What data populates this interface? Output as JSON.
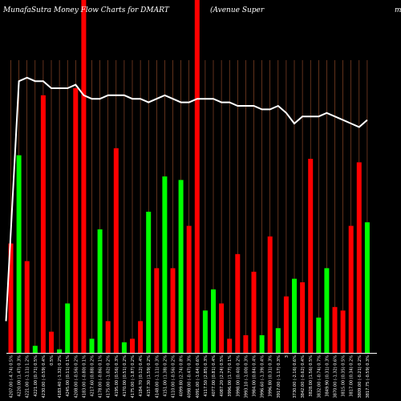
{
  "chart_data": {
    "type": "bar",
    "title": "MunafaSutra  Money Flow  Charts for DMART",
    "subtitle": "(Avenue   Super",
    "title_edge": "m",
    "ylim": [
      0,
      100
    ],
    "grid": "vertical",
    "colors": {
      "up": "#00ff00",
      "down": "#ff0000",
      "grid": "#a0522d",
      "line": "#ffffff",
      "background": "#000000"
    },
    "categories": [
      "4207.00 (-4.74) 0.5%",
      "4220.00 (1.47) 0.3%",
      "4221.00 (-1.11) 1.2%",
      "4221.00 (0.71) 0.5%",
      "4230.00 (-0.59) 0.4%",
      "0.5%",
      "4183.40 (-1.32) 0.2%",
      "4245.00 (0.11) 0.1%",
      "4208.00 (-0.56) 0.2%",
      "4183.00 (-0.80) 0.1%",
      "4217.60 (0.88) 0.2%",
      "4178.00 (-0.86) 0.1%",
      "4175.00 (-1.02) 0.2%",
      "4195.00 (0.56) 0.3%",
      "4170.00 (0.51) 0.2%",
      "4175.00 (-1.87) 0.2%",
      "4184.70 (0.12) 0.4%",
      "4157.30 (1.59) 0.2%",
      "4148.00 (-1.11) 0.3%",
      "4151.00 (1.38) 0.2%",
      "4110.00 (-0.56) 0.2%",
      "4099.80 (2.74) 0.8%",
      "4098.00 (-0.47) 0.3%",
      "4091.00 (-1.64) 0.6%",
      "4117.50 (2.85) 0.3%",
      "4077.00 (0.81) 0.4%",
      "4087.20 (2.24) 0.5%",
      "3996.00 (1.77) 0.1%",
      "3998.00 (0.40) 0.2%",
      "3993.10 (-1.00) 0.3%",
      "3984.00 (0.84) 0.4%",
      "3996.60 (-1.39) 0.4%",
      "3996.80 (0.31) 0.3%",
      "3917.00 (-1.17) 0.3%",
      "3",
      "3730.00 (-2.16) 0.6%",
      "3842.00 (-0.62) 0.4%",
      "3828.00 (1.56) 0.5%",
      "3832.00 (-0.74) 0.7%",
      "3849.90 (0.31) 0.3%",
      "3870.00 (-1.32) 0.6%",
      "3815.00 (0.35) 0.5%",
      "3817.00 (0.34) 0.2%",
      "3809.00 (-0.21) 0.2%",
      "3817.75 (-0.59) 0.3%"
    ],
    "series": [
      {
        "values": [
          31,
          56,
          26,
          2,
          73,
          6,
          1,
          14,
          75,
          100,
          4,
          35,
          9,
          58,
          3,
          4,
          9,
          40,
          24,
          50,
          24,
          49,
          36,
          100,
          12,
          18,
          14,
          4,
          28,
          5,
          23,
          5,
          33,
          7,
          16,
          21,
          20,
          55,
          10,
          24,
          13,
          12,
          36,
          54,
          37
        ],
        "direction": [
          "down",
          "up",
          "down",
          "up",
          "down",
          "down",
          "up",
          "up",
          "down",
          "down",
          "up",
          "up",
          "down",
          "down",
          "up",
          "down",
          "down",
          "up",
          "down",
          "up",
          "down",
          "up",
          "down",
          "down",
          "up",
          "up",
          "down",
          "down",
          "down",
          "down",
          "down",
          "up",
          "down",
          "up",
          "down",
          "up",
          "down",
          "down",
          "up",
          "up",
          "down",
          "down",
          "down",
          "down",
          "up"
        ]
      },
      {
        "type": "line",
        "values": [
          9,
          77,
          78,
          77,
          77,
          75,
          75,
          75,
          76,
          73,
          72,
          72,
          73,
          73,
          73,
          72,
          72,
          71,
          72,
          73,
          72,
          71,
          71,
          72,
          72,
          72,
          71,
          71,
          70,
          70,
          70,
          69,
          69,
          70,
          68,
          65,
          67,
          67,
          67,
          68,
          67,
          66,
          65,
          64,
          66
        ]
      }
    ]
  }
}
